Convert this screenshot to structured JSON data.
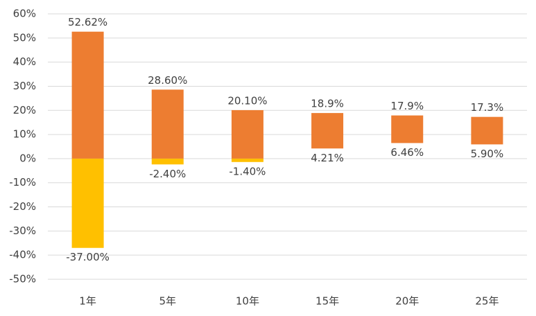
{
  "chart_data": {
    "type": "floating-bar",
    "categories": [
      "1年",
      "5年",
      "10年",
      "15年",
      "20年",
      "25年"
    ],
    "series": [
      {
        "color": "#ED7D31",
        "values": [
          52.62,
          28.6,
          20.1,
          18.9,
          17.9,
          17.3
        ],
        "value_labels": [
          "52.62%",
          "28.60%",
          "20.10%",
          "18.9%",
          "17.9%",
          "17.3%"
        ]
      },
      {
        "color": "#FFC000",
        "values": [
          -37.0,
          -2.4,
          -1.4,
          4.21,
          6.46,
          5.9
        ],
        "value_labels": [
          "-37.00%",
          "-2.40%",
          "-1.40%",
          "4.21%",
          "6.46%",
          "5.90%"
        ]
      }
    ],
    "ylim": [
      -50,
      60
    ],
    "yticks": [
      {
        "value": -50,
        "label": "-50%"
      },
      {
        "value": -40,
        "label": "-40%"
      },
      {
        "value": -30,
        "label": "-30%"
      },
      {
        "value": -20,
        "label": "-20%"
      },
      {
        "value": -10,
        "label": "-10%"
      },
      {
        "value": 0,
        "label": "0%"
      },
      {
        "value": 10,
        "label": "10%"
      },
      {
        "value": 20,
        "label": "20%"
      },
      {
        "value": 30,
        "label": "30%"
      },
      {
        "value": 40,
        "label": "40%"
      },
      {
        "value": 50,
        "label": "50%"
      },
      {
        "value": 60,
        "label": "60%"
      }
    ],
    "grid": true
  }
}
